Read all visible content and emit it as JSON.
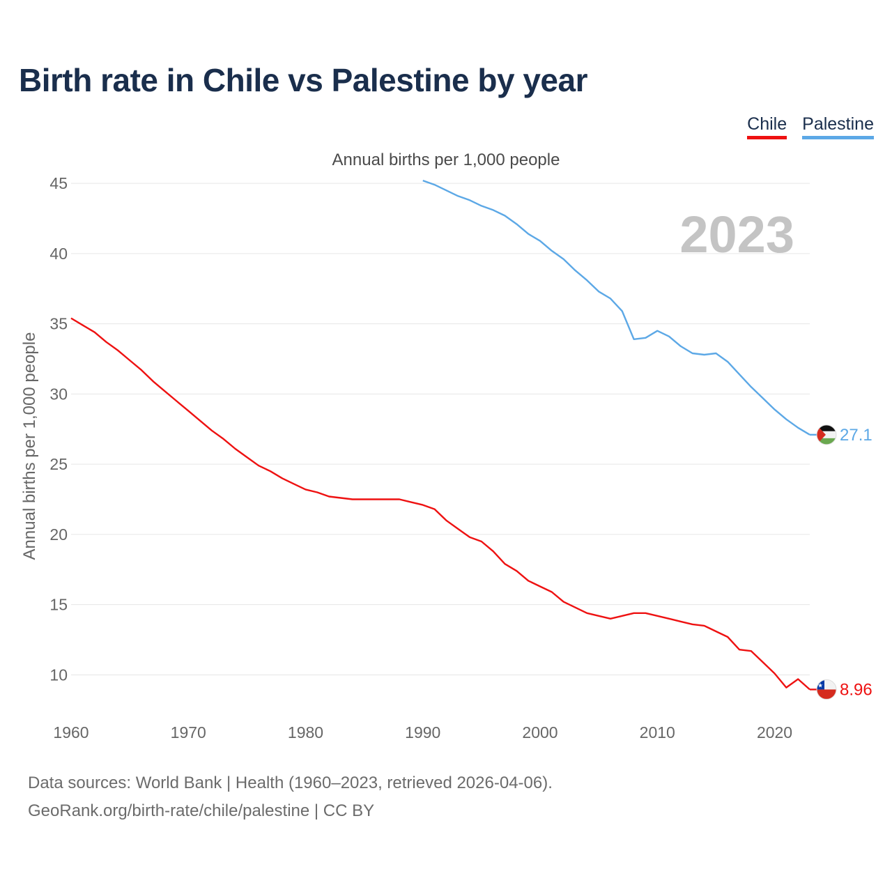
{
  "title": "Birth rate in Chile vs Palestine by year",
  "legend": [
    {
      "label": "Chile",
      "color": "#ee1111"
    },
    {
      "label": "Palestine",
      "color": "#5ca8e6"
    }
  ],
  "subtitle": "Annual births per 1,000 people",
  "footer": {
    "line1": "Data sources: World Bank | Health (1960–2023, retrieved 2026-04-06).",
    "line2": "GeoRank.org/birth-rate/chile/palestine | CC BY"
  },
  "flags": {
    "chile": "chile-flag-icon",
    "palestine": "palestine-flag-icon"
  },
  "chart_data": {
    "type": "line",
    "title": "Birth rate in Chile vs Palestine by year",
    "ylabel": "Annual births per 1,000 people",
    "xlabel": "",
    "ylim": [
      6.3,
      45.8
    ],
    "xlim": [
      1960,
      2023
    ],
    "year_label": "2023",
    "yticks": [
      10,
      15,
      20,
      25,
      30,
      35,
      40,
      45
    ],
    "xticks": [
      1960,
      1970,
      1980,
      1990,
      2000,
      2010,
      2020
    ],
    "grid": true,
    "series": [
      {
        "name": "Chile",
        "color": "#ee1111",
        "end_label": "8.96",
        "x": [
          1960,
          1961,
          1962,
          1963,
          1964,
          1965,
          1966,
          1967,
          1968,
          1969,
          1970,
          1971,
          1972,
          1973,
          1974,
          1975,
          1976,
          1977,
          1978,
          1979,
          1980,
          1981,
          1982,
          1983,
          1984,
          1985,
          1986,
          1987,
          1988,
          1989,
          1990,
          1991,
          1992,
          1993,
          1994,
          1995,
          1996,
          1997,
          1998,
          1999,
          2000,
          2001,
          2002,
          2003,
          2004,
          2005,
          2006,
          2007,
          2008,
          2009,
          2010,
          2011,
          2012,
          2013,
          2014,
          2015,
          2016,
          2017,
          2018,
          2019,
          2020,
          2021,
          2022,
          2023
        ],
        "values": [
          35.4,
          34.9,
          34.4,
          33.7,
          33.1,
          32.4,
          31.7,
          30.9,
          30.2,
          29.5,
          28.8,
          28.1,
          27.4,
          26.8,
          26.1,
          25.5,
          24.9,
          24.5,
          24.0,
          23.6,
          23.2,
          23.0,
          22.7,
          22.6,
          22.5,
          22.5,
          22.5,
          22.5,
          22.5,
          22.3,
          22.1,
          21.8,
          21.0,
          20.4,
          19.8,
          19.5,
          18.8,
          17.9,
          17.4,
          16.7,
          16.3,
          15.9,
          15.2,
          14.8,
          14.4,
          14.2,
          14.0,
          14.2,
          14.4,
          14.4,
          14.2,
          14.0,
          13.8,
          13.6,
          13.5,
          13.1,
          12.7,
          11.8,
          11.7,
          10.9,
          10.1,
          9.1,
          9.7,
          8.96
        ]
      },
      {
        "name": "Palestine",
        "color": "#5ca8e6",
        "end_label": "27.1",
        "x": [
          1990,
          1991,
          1992,
          1993,
          1994,
          1995,
          1996,
          1997,
          1998,
          1999,
          2000,
          2001,
          2002,
          2003,
          2004,
          2005,
          2006,
          2007,
          2008,
          2009,
          2010,
          2011,
          2012,
          2013,
          2014,
          2015,
          2016,
          2017,
          2018,
          2019,
          2020,
          2021,
          2022,
          2023
        ],
        "values": [
          45.2,
          44.9,
          44.5,
          44.1,
          43.8,
          43.4,
          43.1,
          42.7,
          42.1,
          41.4,
          40.9,
          40.2,
          39.6,
          38.8,
          38.1,
          37.3,
          36.8,
          35.9,
          33.9,
          34.0,
          34.5,
          34.1,
          33.4,
          32.9,
          32.8,
          32.9,
          32.3,
          31.4,
          30.5,
          29.7,
          28.9,
          28.2,
          27.6,
          27.1
        ]
      }
    ]
  }
}
